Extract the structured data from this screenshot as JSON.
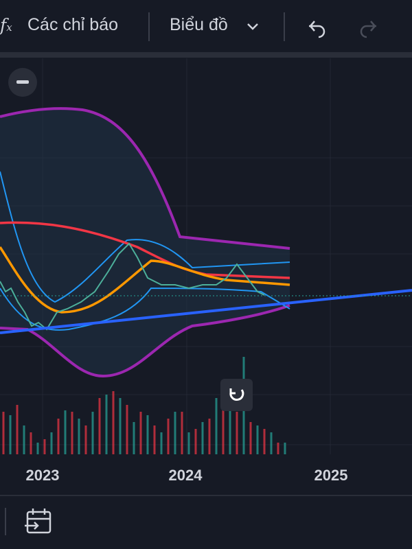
{
  "toolbar": {
    "indicators": "Các chỉ báo",
    "chart": "Biểu đồ"
  },
  "x_axis": {
    "labels": [
      "2023",
      "2024",
      "2025"
    ]
  }
}
